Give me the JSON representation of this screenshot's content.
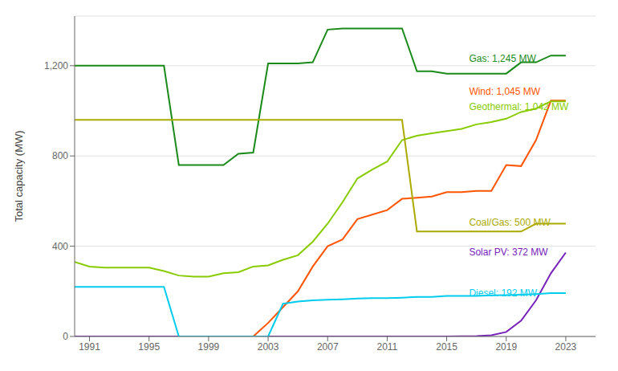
{
  "chart_data": {
    "type": "line",
    "ylabel": "Total capacity (MW)",
    "xlim": [
      1990,
      2025
    ],
    "ylim": [
      0,
      1420
    ],
    "xticks": [
      1991,
      1995,
      1999,
      2003,
      2007,
      2011,
      2015,
      2019,
      2023
    ],
    "yticks": [
      0,
      400,
      800,
      {
        "value": 1200,
        "label": "1,200"
      }
    ],
    "grid": true,
    "series": [
      {
        "name": "Gas: 1,245 MW",
        "color": "#1a8a1a",
        "x": [
          1990,
          1991,
          1992,
          1993,
          1994,
          1995,
          1996,
          1997,
          1997,
          1998,
          1999,
          2000,
          2001,
          2002,
          2003,
          2004,
          2005,
          2006,
          2007,
          2008,
          2009,
          2010,
          2011,
          2012,
          2013,
          2014,
          2015,
          2016,
          2017,
          2018,
          2019,
          2020,
          2021,
          2022,
          2023
        ],
        "values": [
          1200,
          1200,
          1200,
          1200,
          1200,
          1200,
          1200,
          760,
          760,
          760,
          760,
          760,
          810,
          815,
          1210,
          1210,
          1210,
          1215,
          1360,
          1365,
          1365,
          1365,
          1365,
          1365,
          1175,
          1175,
          1165,
          1165,
          1165,
          1165,
          1165,
          1215,
          1215,
          1245,
          1245
        ]
      },
      {
        "name": "Wind: 1,045 MW",
        "color": "#ff5500",
        "x": [
          1990,
          1991,
          1992,
          1993,
          1994,
          1995,
          1996,
          1997,
          1998,
          1999,
          2000,
          2001,
          2002,
          2003,
          2004,
          2005,
          2006,
          2007,
          2008,
          2009,
          2010,
          2011,
          2012,
          2013,
          2014,
          2015,
          2016,
          2017,
          2018,
          2019,
          2020,
          2021,
          2022,
          2023
        ],
        "values": [
          0,
          0,
          0,
          0,
          0,
          0,
          0,
          0,
          0,
          0,
          0,
          0,
          0,
          60,
          130,
          200,
          310,
          400,
          430,
          520,
          540,
          560,
          610,
          615,
          620,
          640,
          640,
          645,
          645,
          760,
          755,
          870,
          1045,
          1045
        ]
      },
      {
        "name": "Geothermal: 1,042 MW",
        "color": "#88cc00",
        "x": [
          1990,
          1991,
          1992,
          1993,
          1994,
          1995,
          1996,
          1997,
          1998,
          1999,
          2000,
          2001,
          2002,
          2003,
          2004,
          2005,
          2006,
          2007,
          2008,
          2009,
          2010,
          2011,
          2012,
          2013,
          2014,
          2015,
          2016,
          2017,
          2018,
          2019,
          2020,
          2021,
          2022,
          2023
        ],
        "values": [
          330,
          310,
          305,
          305,
          305,
          305,
          290,
          270,
          265,
          265,
          280,
          285,
          310,
          315,
          340,
          360,
          420,
          500,
          595,
          700,
          740,
          775,
          870,
          890,
          900,
          910,
          920,
          940,
          950,
          965,
          995,
          1010,
          1042,
          1042
        ]
      },
      {
        "name": "Coal/Gas: 500 MW",
        "color": "#aaaa00",
        "x": [
          1990,
          1991,
          1992,
          1993,
          1994,
          1995,
          1996,
          1997,
          1998,
          1999,
          2000,
          2001,
          2002,
          2003,
          2004,
          2005,
          2006,
          2007,
          2008,
          2009,
          2010,
          2011,
          2012,
          2013,
          2014,
          2015,
          2016,
          2017,
          2018,
          2019,
          2020,
          2021,
          2022,
          2023
        ],
        "values": [
          960,
          960,
          960,
          960,
          960,
          960,
          960,
          960,
          960,
          960,
          960,
          960,
          960,
          960,
          960,
          960,
          960,
          960,
          960,
          960,
          960,
          960,
          960,
          465,
          465,
          465,
          465,
          465,
          465,
          465,
          465,
          500,
          500,
          500
        ]
      },
      {
        "name": "Solar PV: 372 MW",
        "color": "#7722bb",
        "x": [
          1990,
          1991,
          1992,
          1993,
          1994,
          1995,
          1996,
          1997,
          1998,
          1999,
          2000,
          2001,
          2002,
          2003,
          2004,
          2005,
          2006,
          2007,
          2008,
          2009,
          2010,
          2011,
          2012,
          2013,
          2014,
          2015,
          2016,
          2017,
          2018,
          2019,
          2020,
          2021,
          2022,
          2023
        ],
        "values": [
          0,
          0,
          0,
          0,
          0,
          0,
          0,
          0,
          0,
          0,
          0,
          0,
          0,
          0,
          0,
          0,
          0,
          0,
          0,
          0,
          0,
          0,
          0,
          0,
          0,
          0,
          1,
          2,
          5,
          20,
          70,
          160,
          280,
          372
        ]
      },
      {
        "name": "Diesel: 192 MW",
        "color": "#00ccee",
        "x": [
          1990,
          1991,
          1992,
          1993,
          1994,
          1995,
          1996,
          1997,
          1998,
          1999,
          2000,
          2001,
          2002,
          2003,
          2004,
          2005,
          2006,
          2007,
          2008,
          2009,
          2010,
          2011,
          2012,
          2013,
          2014,
          2015,
          2016,
          2017,
          2018,
          2019,
          2020,
          2021,
          2022,
          2023
        ],
        "values": [
          220,
          220,
          220,
          220,
          220,
          220,
          220,
          0,
          0,
          0,
          0,
          0,
          0,
          0,
          145,
          155,
          160,
          163,
          165,
          168,
          170,
          170,
          172,
          175,
          175,
          180,
          180,
          180,
          182,
          183,
          185,
          188,
          192,
          192
        ]
      }
    ],
    "annotations": [
      {
        "text": "Gas: 1,245 MW",
        "x": 2016.5,
        "y": 1230,
        "color": "#1a8a1a"
      },
      {
        "text": "Wind: 1,045 MW",
        "x": 2016.5,
        "y": 1068,
        "color": "#ff5500"
      },
      {
        "text": "Geothermal: 1,042 MW",
        "x": 2016.5,
        "y": 1040,
        "color": "#88cc00"
      },
      {
        "text": "Coal/Gas: 500 MW",
        "x": 2016.5,
        "y": 504,
        "color": "#aaaa00"
      },
      {
        "text": "Solar PV: 372 MW",
        "x": 2016.5,
        "y": 374,
        "color": "#7722bb"
      },
      {
        "text": "Diesel: 192 MW",
        "x": 2016.5,
        "y": 193,
        "color": "#00ccee"
      }
    ]
  }
}
